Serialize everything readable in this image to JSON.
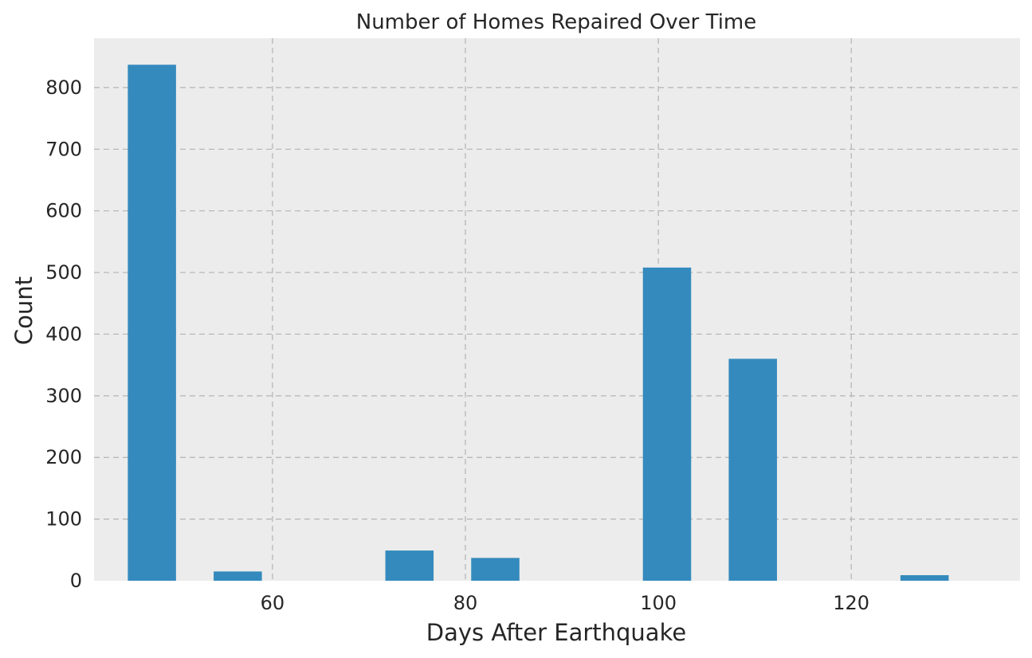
{
  "chart_data": {
    "type": "bar",
    "title": "Number of Homes Repaired Over Time",
    "xlabel": "Days After Earthquake",
    "ylabel": "Count",
    "xlim": [
      41.5,
      137.5
    ],
    "ylim": [
      0,
      880
    ],
    "xticks": [
      60,
      80,
      100,
      120
    ],
    "yticks": [
      0,
      100,
      200,
      300,
      400,
      500,
      600,
      700,
      800
    ],
    "grid": true,
    "bar_width": 5,
    "bars": [
      {
        "x": 47.5,
        "value": 837
      },
      {
        "x": 56.4,
        "value": 15
      },
      {
        "x": 74.2,
        "value": 49
      },
      {
        "x": 83.1,
        "value": 37
      },
      {
        "x": 100.9,
        "value": 508
      },
      {
        "x": 109.8,
        "value": 360
      },
      {
        "x": 127.6,
        "value": 9
      }
    ],
    "colors": {
      "bar": "#348abd",
      "plot_background": "#ececec",
      "grid": "#b3b3b3",
      "text": "#262626"
    }
  }
}
